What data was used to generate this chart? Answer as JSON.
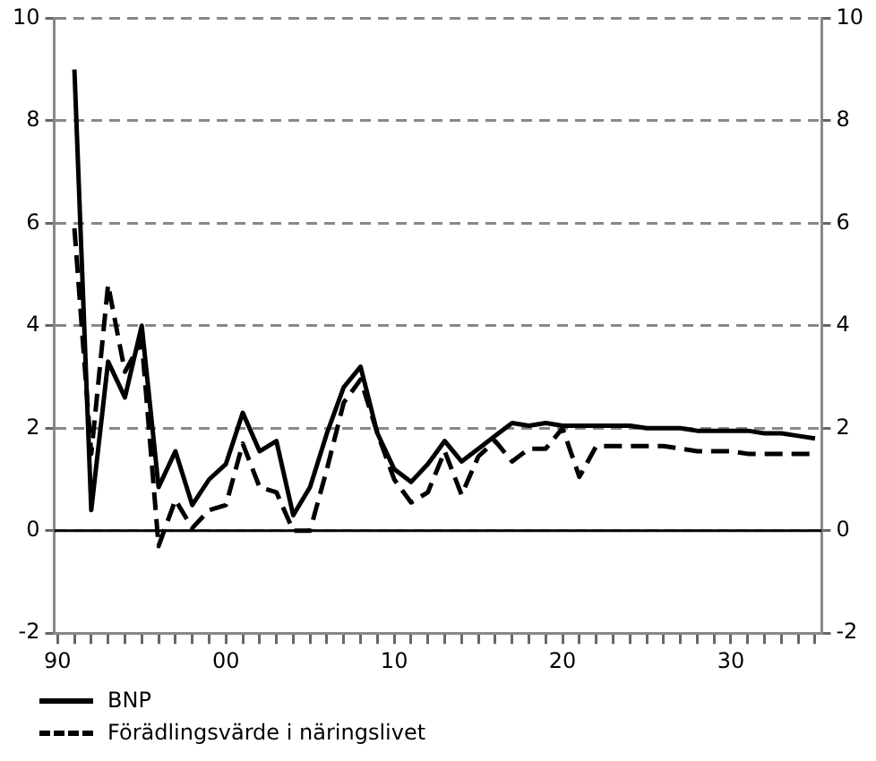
{
  "chart_data": {
    "type": "line",
    "x": [
      1991,
      1992,
      1993,
      1994,
      1995,
      1996,
      1997,
      1998,
      1999,
      2000,
      2001,
      2002,
      2003,
      2004,
      2005,
      2006,
      2007,
      2008,
      2009,
      2010,
      2011,
      2012,
      2013,
      2014,
      2015,
      2016,
      2017,
      2018,
      2019,
      2020,
      2021,
      2022,
      2023,
      2024,
      2025,
      2026,
      2027,
      2028,
      2029,
      2030,
      2031,
      2032,
      2033,
      2034,
      2035
    ],
    "series": [
      {
        "name": "BNP",
        "color": "#000000",
        "line_style": "solid",
        "values": [
          9.0,
          0.4,
          3.3,
          2.6,
          4.0,
          0.85,
          1.55,
          0.5,
          1.0,
          1.3,
          2.3,
          1.55,
          1.75,
          0.3,
          0.85,
          1.9,
          2.8,
          3.2,
          1.9,
          1.2,
          0.95,
          1.3,
          1.75,
          1.35,
          1.6,
          1.85,
          2.1,
          2.05,
          2.1,
          2.05,
          2.05,
          2.05,
          2.05,
          2.05,
          2.0,
          2.0,
          2.0,
          1.95,
          1.95,
          1.95,
          1.95,
          1.9,
          1.9,
          1.85,
          1.8
        ]
      },
      {
        "name": "Förädlingsvärde i näringslivet",
        "color": "#000000",
        "line_style": "dashed",
        "values": [
          5.9,
          1.5,
          4.8,
          3.1,
          3.7,
          -0.3,
          0.6,
          0.05,
          0.4,
          0.5,
          1.7,
          0.85,
          0.75,
          0.0,
          0.0,
          1.2,
          2.5,
          2.95,
          1.9,
          1.0,
          0.55,
          0.75,
          1.55,
          0.7,
          1.45,
          1.75,
          1.35,
          1.6,
          1.6,
          2.0,
          1.05,
          1.65,
          1.65,
          1.65,
          1.65,
          1.65,
          1.6,
          1.55,
          1.55,
          1.55,
          1.5,
          1.5,
          1.5,
          1.5,
          1.5
        ]
      }
    ],
    "xlim": [
      1989.8,
      2035.4
    ],
    "xticks": [
      {
        "value": 1990,
        "label": "90"
      },
      {
        "value": 1991,
        "label": null
      },
      {
        "value": 1992,
        "label": null
      },
      {
        "value": 1993,
        "label": null
      },
      {
        "value": 1994,
        "label": null
      },
      {
        "value": 1995,
        "label": null
      },
      {
        "value": 1996,
        "label": null
      },
      {
        "value": 1997,
        "label": null
      },
      {
        "value": 1998,
        "label": null
      },
      {
        "value": 1999,
        "label": null
      },
      {
        "value": 2000,
        "label": "00"
      },
      {
        "value": 2001,
        "label": null
      },
      {
        "value": 2002,
        "label": null
      },
      {
        "value": 2003,
        "label": null
      },
      {
        "value": 2004,
        "label": null
      },
      {
        "value": 2005,
        "label": null
      },
      {
        "value": 2006,
        "label": null
      },
      {
        "value": 2007,
        "label": null
      },
      {
        "value": 2008,
        "label": null
      },
      {
        "value": 2009,
        "label": null
      },
      {
        "value": 2010,
        "label": "10"
      },
      {
        "value": 2011,
        "label": null
      },
      {
        "value": 2012,
        "label": null
      },
      {
        "value": 2013,
        "label": null
      },
      {
        "value": 2014,
        "label": null
      },
      {
        "value": 2015,
        "label": null
      },
      {
        "value": 2016,
        "label": null
      },
      {
        "value": 2017,
        "label": null
      },
      {
        "value": 2018,
        "label": null
      },
      {
        "value": 2019,
        "label": null
      },
      {
        "value": 2020,
        "label": "20"
      },
      {
        "value": 2021,
        "label": null
      },
      {
        "value": 2022,
        "label": null
      },
      {
        "value": 2023,
        "label": null
      },
      {
        "value": 2024,
        "label": null
      },
      {
        "value": 2025,
        "label": null
      },
      {
        "value": 2026,
        "label": null
      },
      {
        "value": 2027,
        "label": null
      },
      {
        "value": 2028,
        "label": null
      },
      {
        "value": 2029,
        "label": null
      },
      {
        "value": 2030,
        "label": "30"
      },
      {
        "value": 2031,
        "label": null
      },
      {
        "value": 2032,
        "label": null
      },
      {
        "value": 2033,
        "label": null
      },
      {
        "value": 2034,
        "label": null
      },
      {
        "value": 2035,
        "label": null
      }
    ],
    "ylim": [
      -2,
      10
    ],
    "yticks": [
      -2,
      0,
      2,
      4,
      6,
      8,
      10
    ],
    "y2lim": [
      -2,
      10
    ],
    "y2ticks": [
      -2,
      0,
      2,
      4,
      6,
      8,
      10
    ],
    "ref_lines": [
      {
        "axis": "y",
        "value": 0,
        "color": "#000000",
        "line_style": "solid"
      }
    ],
    "grid": "y",
    "legend": "bottom",
    "marker": "none"
  }
}
